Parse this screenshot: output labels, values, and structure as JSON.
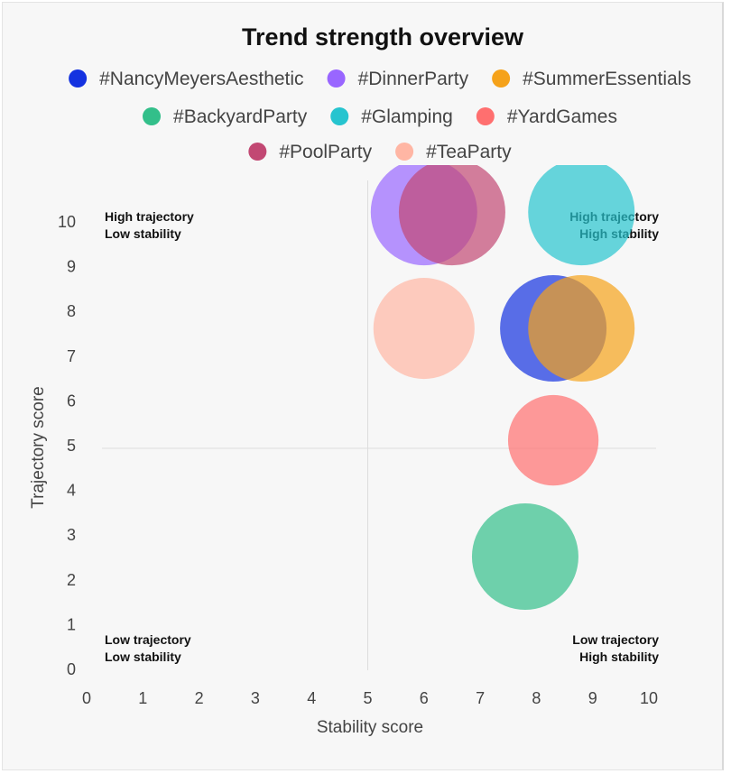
{
  "chart_data": {
    "type": "bubble",
    "title": "Trend strength overview",
    "xlabel": "Stability score",
    "ylabel": "Trajectory score",
    "xlim": [
      0,
      10
    ],
    "ylim": [
      0,
      10
    ],
    "xticks": [
      "0",
      "1",
      "2",
      "3",
      "4",
      "5",
      "6",
      "7",
      "8",
      "9",
      "10"
    ],
    "yticks": [
      "0",
      "1",
      "2",
      "3",
      "4",
      "5",
      "6",
      "7",
      "8",
      "9",
      "10"
    ],
    "reference_lines": {
      "x": 5,
      "y": 5
    },
    "quadrant_labels": {
      "top_left": [
        "High trajectory",
        "Low stability"
      ],
      "top_right": [
        "High trajectory",
        "High stability"
      ],
      "bottom_left": [
        "Low trajectory",
        "Low stability"
      ],
      "bottom_right": [
        "Low trajectory",
        "High stability"
      ]
    },
    "legend_position": "top",
    "series": [
      {
        "name": "#NancyMeyersAesthetic",
        "color": "#1432e0",
        "x": 8.3,
        "y": 7.6,
        "size": 1.0
      },
      {
        "name": "#DinnerParty",
        "color": "#9966ff",
        "x": 6.0,
        "y": 10.2,
        "size": 1.0
      },
      {
        "name": "#SummerEssentials",
        "color": "#f5a21a",
        "x": 8.8,
        "y": 7.6,
        "size": 1.0
      },
      {
        "name": "#BackyardParty",
        "color": "#33bf8a",
        "x": 7.8,
        "y": 2.5,
        "size": 1.0
      },
      {
        "name": "#Glamping",
        "color": "#26c4cf",
        "x": 8.8,
        "y": 10.2,
        "size": 1.0
      },
      {
        "name": "#YardGames",
        "color": "#ff6f6f",
        "x": 8.3,
        "y": 5.1,
        "size": 0.85
      },
      {
        "name": "#PoolParty",
        "color": "#c24873",
        "x": 6.5,
        "y": 10.2,
        "size": 1.0
      },
      {
        "name": "#TeaParty",
        "color": "#ffb6a4",
        "x": 6.0,
        "y": 7.6,
        "size": 0.95
      }
    ]
  }
}
